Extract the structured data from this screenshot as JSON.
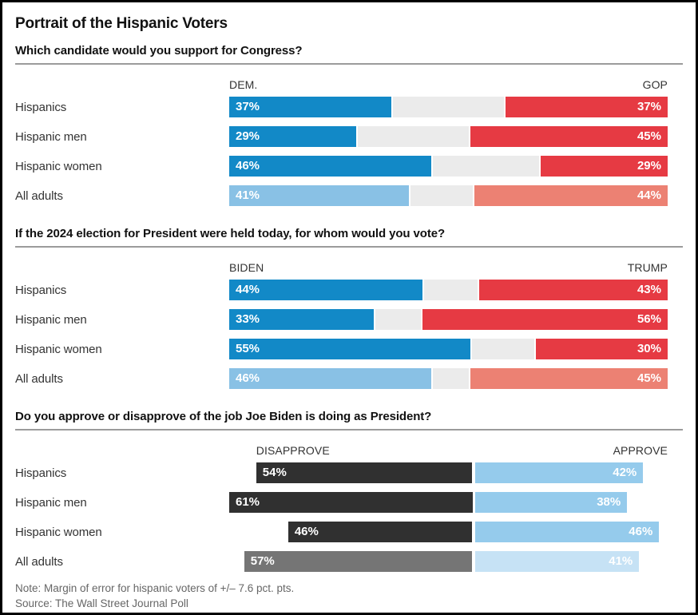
{
  "page": {
    "title": "Portrait of the Hispanic Voters",
    "note": "Note: Margin of error for hispanic voters of +/– 7.6 pct. pts.",
    "source": "Source: The Wall Street Journal Poll"
  },
  "colors": {
    "blue_strong": "#1289c7",
    "blue_light": "#89c1e5",
    "red_strong": "#e63a43",
    "red_light": "#ec8173",
    "gap_gray": "#ebebeb",
    "dark_bar": "#303030",
    "gray_bar": "#757575",
    "approve_blue": "#95cbec",
    "approve_blue_light": "#c6e2f5",
    "divider_gray": "#9b9b9b"
  },
  "chart_data": [
    {
      "type": "bar",
      "variant": "opposed-stacked",
      "question": "Which candidate would you support for Congress?",
      "left_label": "DEM.",
      "right_label": "GOP",
      "categories": [
        "Hispanics",
        "Hispanic men",
        "Hispanic women",
        "All adults"
      ],
      "series": [
        {
          "name": "DEM.",
          "values": [
            37,
            29,
            46,
            41
          ]
        },
        {
          "name": "GOP",
          "values": [
            37,
            45,
            29,
            44
          ]
        }
      ],
      "muted_rows": [
        3
      ],
      "unit": "%",
      "left_colors": {
        "default": "#1289c7",
        "muted": "#89c1e5"
      },
      "right_colors": {
        "default": "#e63a43",
        "muted": "#ec8173"
      },
      "xlim": [
        0,
        100
      ],
      "grid": false,
      "legend_position": "above-bars"
    },
    {
      "type": "bar",
      "variant": "opposed-stacked",
      "question": "If the 2024 election for President were held today, for whom would you vote?",
      "left_label": "BIDEN",
      "right_label": "TRUMP",
      "categories": [
        "Hispanics",
        "Hispanic men",
        "Hispanic women",
        "All adults"
      ],
      "series": [
        {
          "name": "BIDEN",
          "values": [
            44,
            33,
            55,
            46
          ]
        },
        {
          "name": "TRUMP",
          "values": [
            43,
            56,
            30,
            45
          ]
        }
      ],
      "muted_rows": [
        3
      ],
      "unit": "%",
      "left_colors": {
        "default": "#1289c7",
        "muted": "#89c1e5"
      },
      "right_colors": {
        "default": "#e63a43",
        "muted": "#ec8173"
      },
      "xlim": [
        0,
        100
      ],
      "grid": false,
      "legend_position": "above-bars"
    },
    {
      "type": "bar",
      "variant": "anchored-diverging",
      "question": "Do you approve or disapprove of the job Joe Biden is doing as President?",
      "left_label": "DISAPPROVE",
      "right_label": "APPROVE",
      "categories": [
        "Hispanics",
        "Hispanic men",
        "Hispanic women",
        "All adults"
      ],
      "series": [
        {
          "name": "DISAPPROVE",
          "values": [
            54,
            61,
            46,
            57
          ]
        },
        {
          "name": "APPROVE",
          "values": [
            42,
            38,
            46,
            41
          ]
        }
      ],
      "muted_rows": [
        3
      ],
      "unit": "%",
      "left_colors": {
        "default": "#303030",
        "muted": "#757575"
      },
      "right_colors": {
        "default": "#95cbec",
        "muted": "#c6e2f5"
      },
      "grid": false,
      "legend_position": "above-bars"
    }
  ]
}
